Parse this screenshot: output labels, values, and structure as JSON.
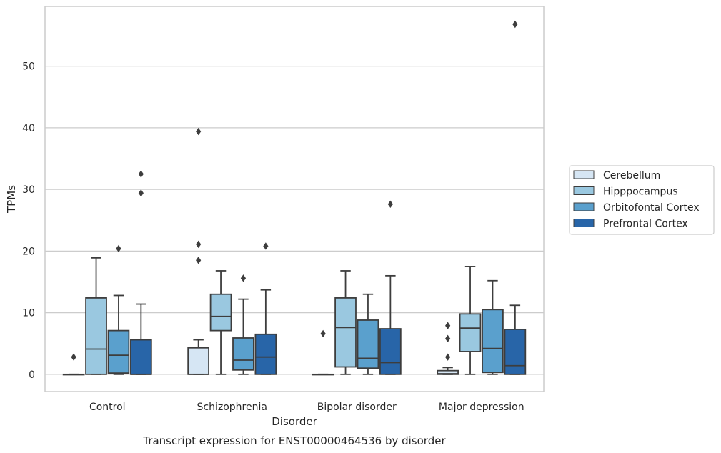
{
  "chart_data": {
    "type": "box",
    "title": "",
    "xlabel": "Disorder",
    "ylabel": "TPMs",
    "caption": "Transcript expression for ENST00000464536 by disorder",
    "categories": [
      "Control",
      "Schizophrenia",
      "Bipolar disorder",
      "Major depression"
    ],
    "yticks": [
      "0",
      "10",
      "20",
      "30",
      "40",
      "50"
    ],
    "ylim": [
      -2.8,
      59.7
    ],
    "grid": "horizontal",
    "legend_position": "right",
    "series": [
      {
        "name": "Cerebellum",
        "color": "#d6e6f4",
        "boxes": [
          {
            "q1": 0,
            "median": 0,
            "q3": 0,
            "whisker_low": 0,
            "whisker_high": 0,
            "outliers": [
              2.8
            ]
          },
          {
            "q1": 0,
            "median": 0,
            "q3": 4.3,
            "whisker_low": 0,
            "whisker_high": 5.6,
            "outliers": [
              18.5,
              21.1,
              39.4
            ]
          },
          {
            "q1": 0,
            "median": 0,
            "q3": 0,
            "whisker_low": 0,
            "whisker_high": 0,
            "outliers": [
              6.6
            ]
          },
          {
            "q1": 0,
            "median": 0.1,
            "q3": 0.6,
            "whisker_low": 0,
            "whisker_high": 1.1,
            "outliers": [
              2.8,
              5.8,
              7.9
            ]
          }
        ]
      },
      {
        "name": "Hipppocampus",
        "color": "#9ac8e0",
        "boxes": [
          {
            "q1": 0,
            "median": 4.1,
            "q3": 12.4,
            "whisker_low": 0,
            "whisker_high": 18.9,
            "outliers": []
          },
          {
            "q1": 7.1,
            "median": 9.4,
            "q3": 13.0,
            "whisker_low": 0,
            "whisker_high": 16.8,
            "outliers": []
          },
          {
            "q1": 1.2,
            "median": 7.6,
            "q3": 12.4,
            "whisker_low": 0,
            "whisker_high": 16.8,
            "outliers": []
          },
          {
            "q1": 3.7,
            "median": 7.5,
            "q3": 9.8,
            "whisker_low": 0,
            "whisker_high": 17.5,
            "outliers": []
          }
        ]
      },
      {
        "name": "Orbitofontal Cortex",
        "color": "#5aa0cd",
        "boxes": [
          {
            "q1": 0.2,
            "median": 3.1,
            "q3": 7.1,
            "whisker_low": 0,
            "whisker_high": 12.8,
            "outliers": [
              20.4
            ]
          },
          {
            "q1": 0.7,
            "median": 2.3,
            "q3": 5.9,
            "whisker_low": 0,
            "whisker_high": 12.2,
            "outliers": [
              15.6
            ]
          },
          {
            "q1": 1.0,
            "median": 2.6,
            "q3": 8.8,
            "whisker_low": 0,
            "whisker_high": 13.0,
            "outliers": []
          },
          {
            "q1": 0.3,
            "median": 4.2,
            "q3": 10.5,
            "whisker_low": 0,
            "whisker_high": 15.2,
            "outliers": []
          }
        ]
      },
      {
        "name": "Prefrontal Cortex",
        "color": "#2865a8",
        "boxes": [
          {
            "q1": 0,
            "median": 0,
            "q3": 5.6,
            "whisker_low": 0,
            "whisker_high": 11.4,
            "outliers": [
              29.4,
              32.5
            ]
          },
          {
            "q1": 0,
            "median": 2.8,
            "q3": 6.5,
            "whisker_low": 0,
            "whisker_high": 13.7,
            "outliers": [
              20.8
            ]
          },
          {
            "q1": 0,
            "median": 1.9,
            "q3": 7.4,
            "whisker_low": 0,
            "whisker_high": 16.0,
            "outliers": [
              27.6
            ]
          },
          {
            "q1": 0,
            "median": 1.4,
            "q3": 7.3,
            "whisker_low": 0,
            "whisker_high": 11.2,
            "outliers": [
              56.8
            ]
          }
        ]
      }
    ]
  }
}
